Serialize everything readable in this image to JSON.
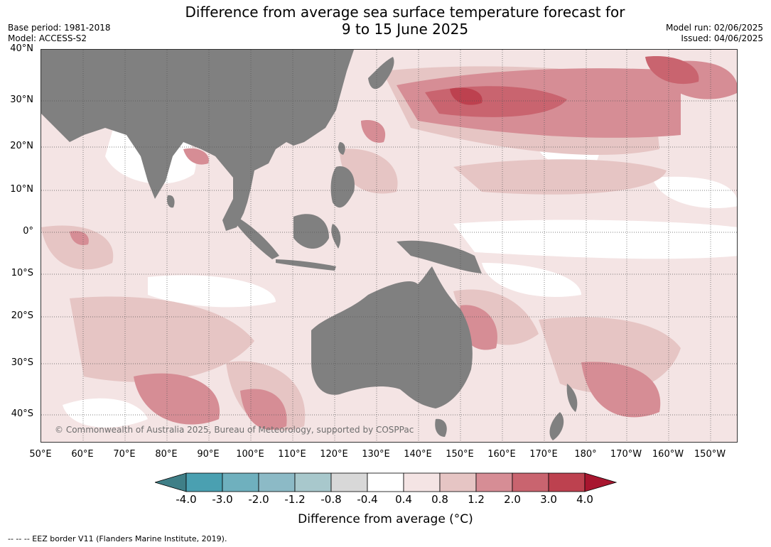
{
  "title": {
    "line1": "Difference from average sea surface temperature forecast for",
    "line2": "9 to 15 June 2025"
  },
  "meta": {
    "base_period": "Base period: 1981-2018",
    "model": "Model: ACCESS-S2",
    "model_run": "Model run: 02/06/2025",
    "issued": "Issued: 04/06/2025"
  },
  "map": {
    "lat_labels": [
      "40°N",
      "30°N",
      "20°N",
      "10°N",
      "0°",
      "10°S",
      "20°S",
      "30°S",
      "40°S"
    ],
    "lon_labels": [
      "50°E",
      "60°E",
      "70°E",
      "80°E",
      "90°E",
      "100°E",
      "110°E",
      "120°E",
      "130°E",
      "140°E",
      "150°E",
      "160°E",
      "170°E",
      "180°",
      "170°W",
      "160°W",
      "150°W"
    ],
    "land_color": "#808080",
    "credit": "© Commonwealth of Australia 2025, Bureau of Meteorology, supported by COSPPac"
  },
  "colorbar": {
    "ticks": [
      "-4.0",
      "-3.0",
      "-2.0",
      "-1.2",
      "-0.8",
      "-0.4",
      "0.4",
      "0.8",
      "1.2",
      "2.0",
      "3.0",
      "4.0"
    ],
    "colors": [
      "#3f7f87",
      "#4aa0b1",
      "#6fb0be",
      "#8cbac6",
      "#a8c8cc",
      "#d8d8d8",
      "#ffffff",
      "#f4e4e4",
      "#e6c5c4",
      "#d68d95",
      "#c9646f",
      "#bd414f",
      "#a8162f"
    ],
    "label": "Difference from average (°C)"
  },
  "footer": "--  --  -- EEZ border V11 (Flanders Marine Institute, 2019)."
}
